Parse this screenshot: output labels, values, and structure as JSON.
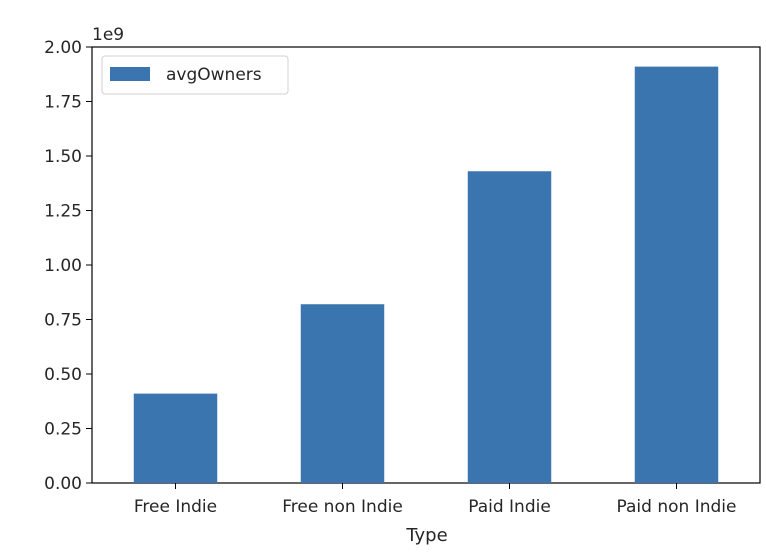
{
  "chart_data": {
    "type": "bar",
    "categories": [
      "Free Indie",
      "Free non Indie",
      "Paid Indie",
      "Paid non Indie"
    ],
    "series": [
      {
        "name": "avgOwners",
        "values": [
          0.41,
          0.82,
          1.43,
          1.91
        ]
      }
    ],
    "value_multiplier_label": "1e9",
    "xlabel": "Type",
    "ylabel": "",
    "ylim": [
      0,
      2.0
    ],
    "yticks": [
      "0.00",
      "0.25",
      "0.50",
      "0.75",
      "1.00",
      "1.25",
      "1.50",
      "1.75",
      "2.00"
    ],
    "grid": false,
    "legend_position": "top-left",
    "colors": {
      "bar": "#3b75af",
      "axis": "#000000",
      "text": "#262626"
    }
  }
}
